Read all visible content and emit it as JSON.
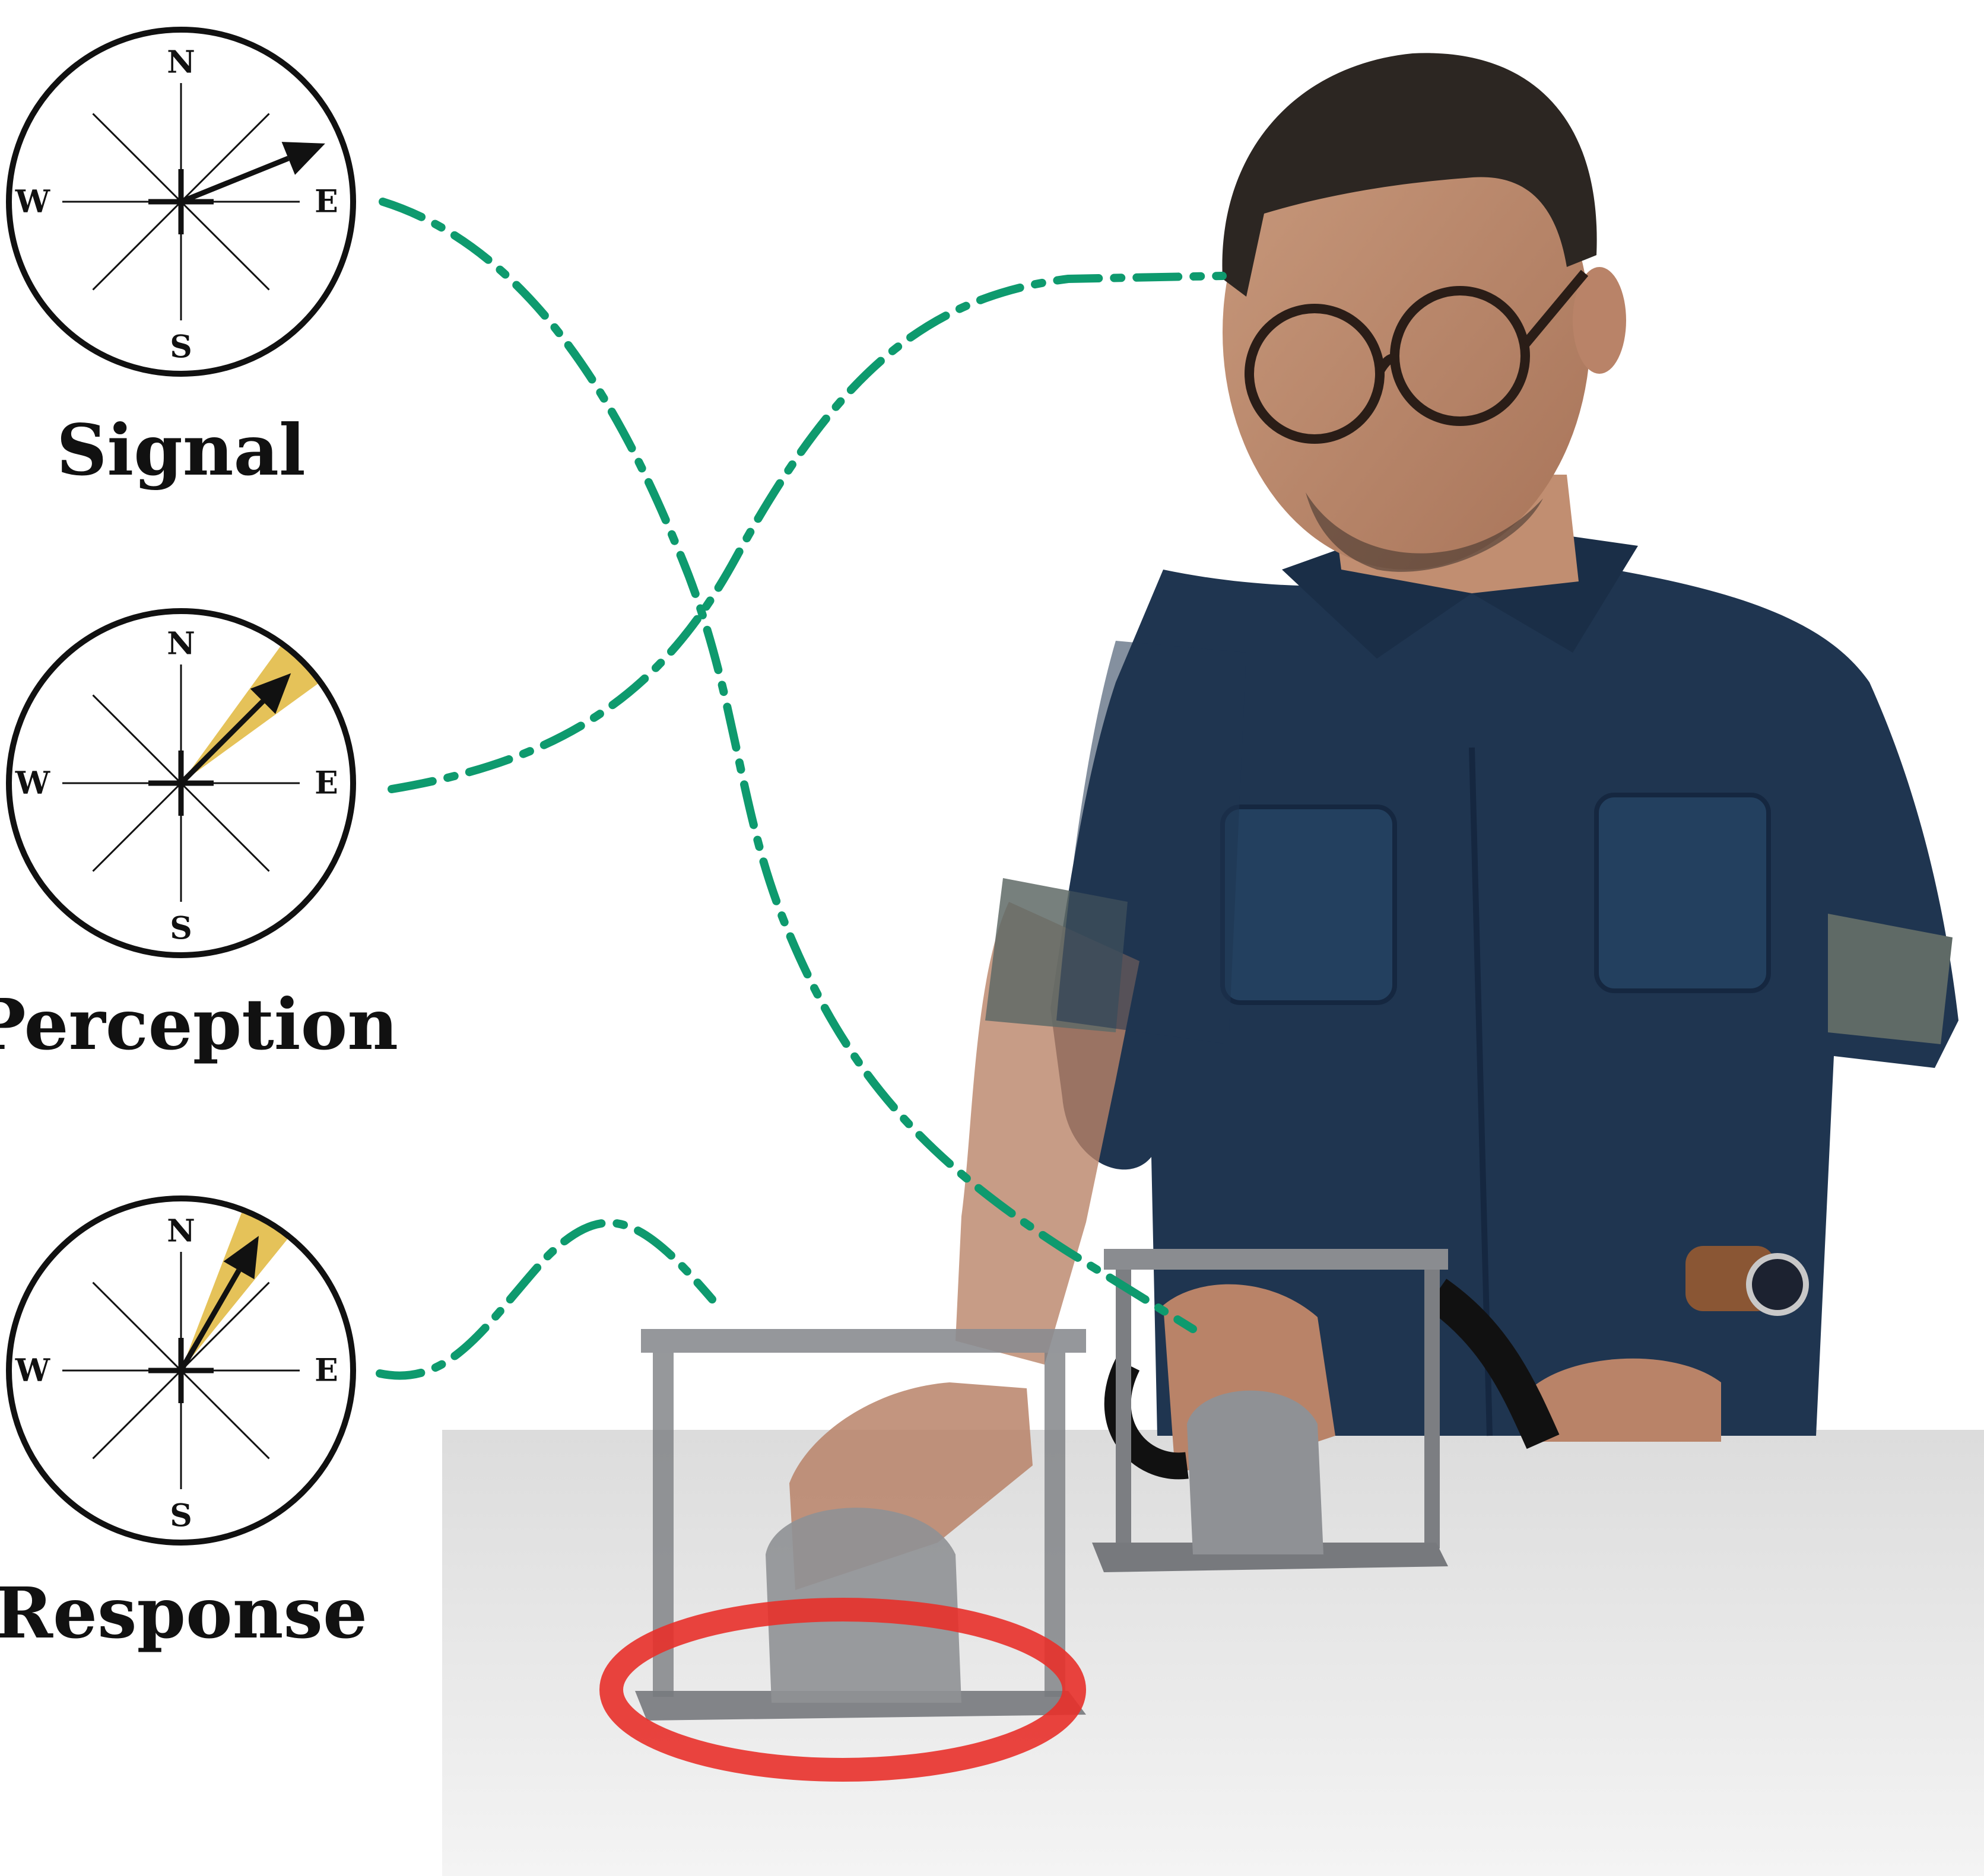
{
  "compasses": [
    {
      "id": "signal",
      "label": "Signal",
      "directions": {
        "north": "N",
        "south": "S",
        "east": "E",
        "west": "W"
      },
      "arrow_bearing_deg": 68,
      "uncertainty_cone": false
    },
    {
      "id": "perception",
      "label": "Perception",
      "directions": {
        "north": "N",
        "south": "S",
        "east": "E",
        "west": "W"
      },
      "arrow_bearing_deg": 45,
      "uncertainty_cone": true,
      "cone_half_width_deg": 9
    },
    {
      "id": "response",
      "label": "Response",
      "directions": {
        "north": "N",
        "south": "S",
        "east": "E",
        "west": "W"
      },
      "arrow_bearing_deg": 30,
      "uncertainty_cone": true,
      "cone_half_width_deg": 9
    }
  ],
  "colors": {
    "connector": "#0e9a6e",
    "cone": "#e1b73c",
    "target_ring": "#e8302a",
    "shirt": "#1f3550",
    "table": "#e9e9e9",
    "device": "#8a8c90"
  }
}
